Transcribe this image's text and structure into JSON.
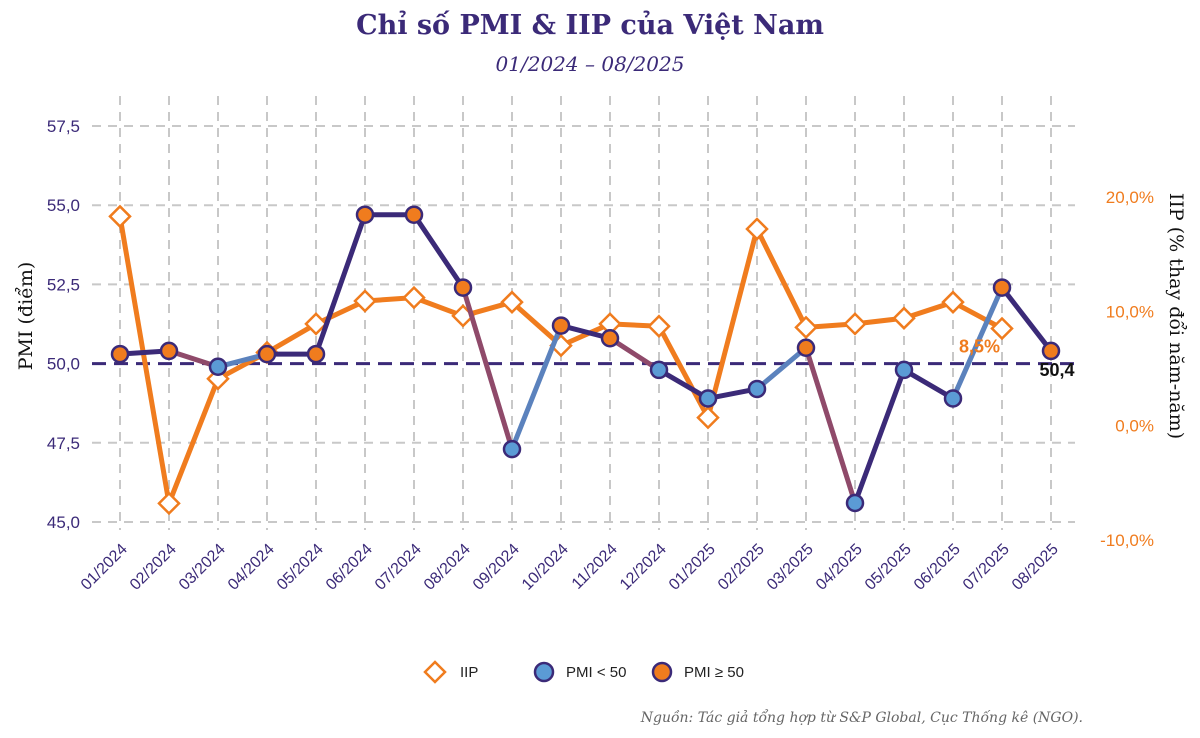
{
  "chart_data": {
    "type": "line",
    "title": "Chỉ số PMI & IIP của Việt Nam",
    "subtitle": "01/2024 – 08/2025",
    "ylabel_left": "PMI (điểm)",
    "ylabel_right": "IIP (% thay đổi năm-năm)",
    "categories": [
      "01/2024",
      "02/2024",
      "03/2024",
      "04/2024",
      "05/2024",
      "06/2024",
      "07/2024",
      "08/2024",
      "09/2024",
      "10/2024",
      "11/2024",
      "12/2024",
      "01/2025",
      "02/2025",
      "03/2025",
      "04/2025",
      "05/2025",
      "06/2025",
      "07/2025",
      "08/2025"
    ],
    "ylim_left": [
      45.0,
      57.5
    ],
    "yticks_left": [
      "45,0",
      "47,5",
      "50,0",
      "52,5",
      "55,0",
      "57,5"
    ],
    "ytick_values_left": [
      45.0,
      47.5,
      50.0,
      52.5,
      55.0,
      57.5
    ],
    "ylim_right": [
      -10.0,
      20.0
    ],
    "yticks_right": [
      "-10,0%",
      "0,0%",
      "10,0%",
      "20,0%"
    ],
    "ytick_values_right": [
      -10.0,
      0.0,
      10.0,
      20.0
    ],
    "threshold": 50.0,
    "series": [
      {
        "name": "IIP",
        "axis": "right",
        "color": "#f07c1e",
        "values": [
          18.3,
          -6.8,
          4.1,
          6.4,
          8.9,
          10.9,
          11.2,
          9.6,
          10.8,
          7.0,
          8.9,
          8.7,
          0.7,
          17.2,
          8.6,
          8.9,
          9.4,
          10.8,
          8.5,
          null
        ]
      },
      {
        "name": "PMI",
        "axis": "left",
        "color": "#3b2a78",
        "values": [
          50.3,
          50.4,
          49.9,
          50.3,
          50.3,
          54.7,
          54.7,
          52.4,
          47.3,
          51.2,
          50.8,
          49.8,
          48.9,
          49.2,
          50.5,
          45.6,
          49.8,
          48.9,
          52.4,
          50.4
        ]
      }
    ],
    "legend": [
      {
        "label": "IIP",
        "marker": "diamond"
      },
      {
        "label": "PMI < 50",
        "marker": "circle"
      },
      {
        "label": "PMI ≥ 50",
        "marker": "circle"
      }
    ],
    "colors": {
      "iip": "#f07c1e",
      "pmi_line": "#3b2a78",
      "pmi_below": "#5b9bd5",
      "pmi_above": "#f07c1e",
      "pmi_outline": "#3b2a78",
      "grid": "#c8c8c8"
    },
    "annotations": [
      {
        "label": "8,5%",
        "series": "IIP",
        "index": 18
      },
      {
        "label": "50,4",
        "series": "PMI",
        "index": 19
      }
    ],
    "grid": true,
    "legend_position": "bottom",
    "source": "Nguồn: Tác giả tổng hợp từ S&P Global, Cục Thống kê (NGO)."
  }
}
